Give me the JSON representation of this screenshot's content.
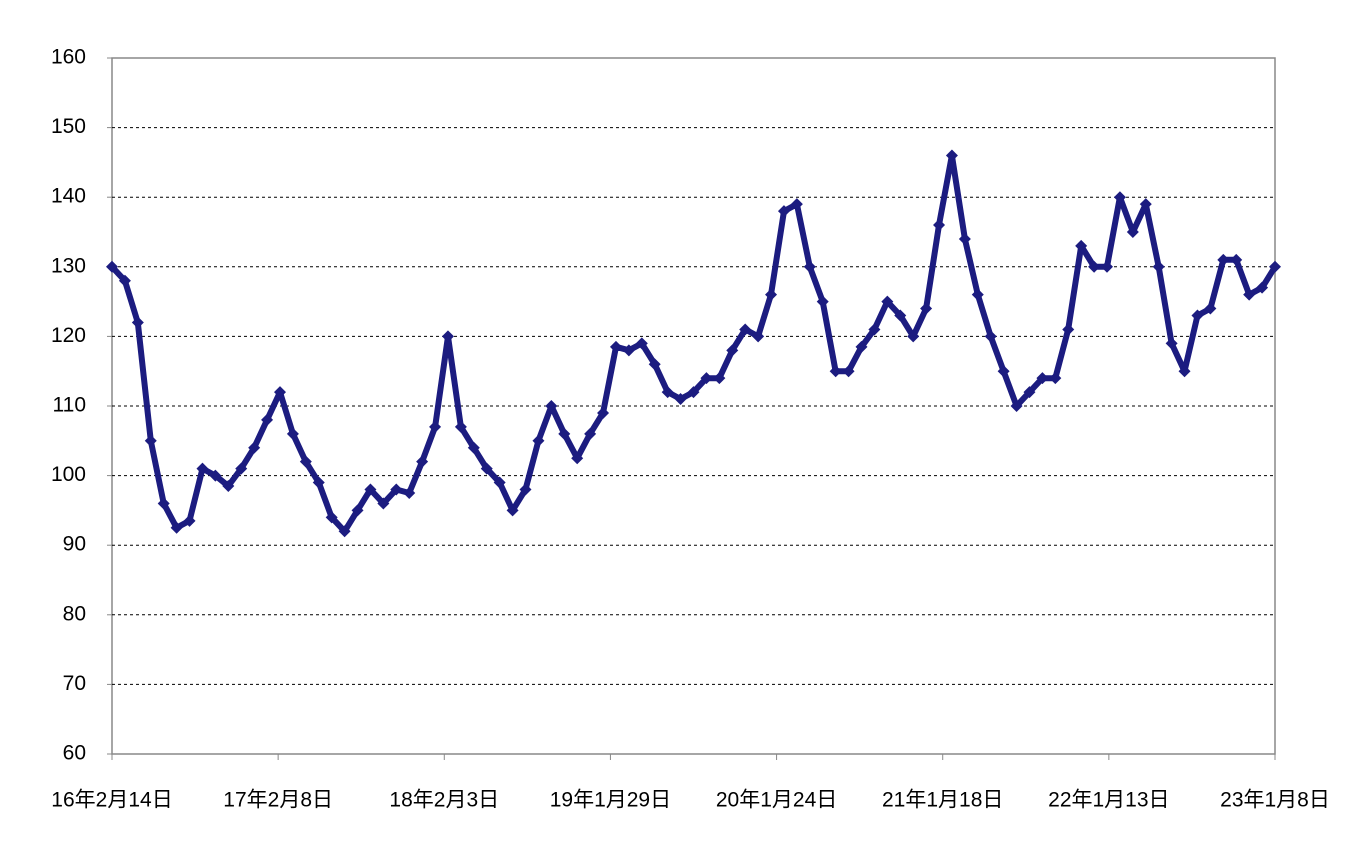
{
  "chart_data": {
    "type": "line",
    "color": "#1c1c80",
    "grid": true,
    "marker": "diamond",
    "xlim": [
      "2016-02-14",
      "2023-01-08"
    ],
    "xticks": [
      {
        "value": "2016-02-14",
        "label": "16年2月14日"
      },
      {
        "value": "2017-02-08",
        "label": "17年2月8日"
      },
      {
        "value": "2018-02-03",
        "label": "18年2月3日"
      },
      {
        "value": "2019-01-29",
        "label": "19年1月29日"
      },
      {
        "value": "2020-01-24",
        "label": "20年1月24日"
      },
      {
        "value": "2021-01-18",
        "label": "21年1月18日"
      },
      {
        "value": "2022-01-13",
        "label": "22年1月13日"
      },
      {
        "value": "2023-01-08",
        "label": "23年1月8日"
      }
    ],
    "ylim": [
      60,
      160
    ],
    "yticks": [
      60,
      70,
      80,
      90,
      100,
      110,
      120,
      130,
      140,
      150,
      160
    ],
    "x": [
      "2016-02-14",
      "2016-03-13",
      "2016-04-10",
      "2016-05-08",
      "2016-06-05",
      "2016-07-03",
      "2016-07-31",
      "2016-08-28",
      "2016-09-25",
      "2016-10-23",
      "2016-11-20",
      "2016-12-18",
      "2017-01-15",
      "2017-02-12",
      "2017-03-12",
      "2017-04-09",
      "2017-05-07",
      "2017-06-04",
      "2017-07-02",
      "2017-07-30",
      "2017-08-27",
      "2017-09-24",
      "2017-10-22",
      "2017-11-19",
      "2017-12-17",
      "2018-01-14",
      "2018-02-11",
      "2018-03-11",
      "2018-04-08",
      "2018-05-06",
      "2018-06-03",
      "2018-07-01",
      "2018-07-29",
      "2018-08-26",
      "2018-09-23",
      "2018-10-21",
      "2018-11-18",
      "2018-12-16",
      "2019-01-13",
      "2019-02-10",
      "2019-03-10",
      "2019-04-07",
      "2019-05-05",
      "2019-06-02",
      "2019-06-30",
      "2019-07-28",
      "2019-08-25",
      "2019-09-22",
      "2019-10-20",
      "2019-11-17",
      "2019-12-15",
      "2020-01-12",
      "2020-02-09",
      "2020-03-08",
      "2020-04-05",
      "2020-05-03",
      "2020-05-31",
      "2020-06-28",
      "2020-07-26",
      "2020-08-23",
      "2020-09-20",
      "2020-10-18",
      "2020-11-15",
      "2020-12-13",
      "2021-01-10",
      "2021-02-07",
      "2021-03-07",
      "2021-04-04",
      "2021-05-02",
      "2021-05-30",
      "2021-06-27",
      "2021-07-25",
      "2021-08-22",
      "2021-09-19",
      "2021-10-17",
      "2021-11-14",
      "2021-12-12",
      "2022-01-09",
      "2022-02-06",
      "2022-03-06",
      "2022-04-03",
      "2022-05-01",
      "2022-05-29",
      "2022-06-26",
      "2022-07-24",
      "2022-08-21",
      "2022-09-18",
      "2022-10-16",
      "2022-11-13",
      "2022-12-11",
      "2023-01-08"
    ],
    "values": [
      130,
      128,
      122,
      105,
      96,
      92.5,
      93.5,
      101,
      100,
      98.5,
      101,
      104,
      108,
      112,
      106,
      102,
      99,
      94,
      92,
      95,
      98,
      96,
      98,
      97.5,
      102,
      107,
      120,
      107,
      104,
      101,
      99,
      95,
      98,
      105,
      110,
      106,
      102.5,
      106,
      109,
      118.5,
      118,
      119,
      116,
      112,
      111,
      112,
      114,
      114,
      118,
      121,
      120,
      126,
      138,
      139,
      130,
      125,
      115,
      115,
      118.5,
      121,
      125,
      123,
      120,
      124,
      136,
      146,
      134,
      126,
      120,
      115,
      110,
      112,
      114,
      114,
      121,
      133,
      130,
      130,
      140,
      135,
      139,
      130,
      119,
      115,
      123,
      124,
      131,
      131,
      126,
      127,
      130
    ]
  }
}
